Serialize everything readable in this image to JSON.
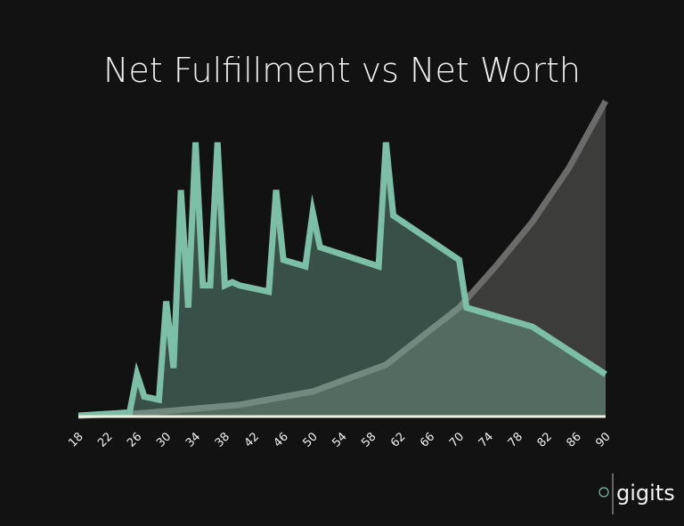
{
  "chart_data": {
    "type": "area",
    "title": "Net Fulfillment vs Net Worth",
    "xlim": [
      18,
      90
    ],
    "xticks": [
      18,
      22,
      26,
      30,
      34,
      38,
      42,
      46,
      50,
      54,
      58,
      62,
      66,
      70,
      74,
      78,
      82,
      86,
      90
    ],
    "ylim": [
      0,
      100
    ],
    "series": [
      {
        "color": "#6b6b69",
        "fill": "#3c3c3a",
        "x": [
          18,
          25,
          30,
          40,
          50,
          60,
          70,
          75,
          80,
          85,
          90
        ],
        "values": [
          0,
          0.5,
          1.4,
          3.4,
          7.6,
          16,
          34,
          47,
          61,
          78,
          99
        ]
      },
      {
        "color": "#7dbfa6",
        "fill": "rgba(125,191,166,0.36)",
        "x": [
          18,
          25,
          26,
          27,
          29,
          30,
          31,
          32,
          33,
          34,
          35,
          36,
          37,
          38,
          39,
          40,
          44,
          45,
          46,
          49,
          50,
          51,
          59,
          60,
          61,
          70,
          71,
          80,
          90
        ],
        "values": [
          0,
          1,
          13,
          6,
          5,
          36,
          15,
          71,
          34,
          86,
          41,
          41,
          86,
          41,
          42,
          41,
          39,
          71,
          49,
          47,
          64,
          53,
          47,
          86,
          63,
          49,
          34,
          28,
          13
        ]
      }
    ]
  },
  "brand": "gigits"
}
